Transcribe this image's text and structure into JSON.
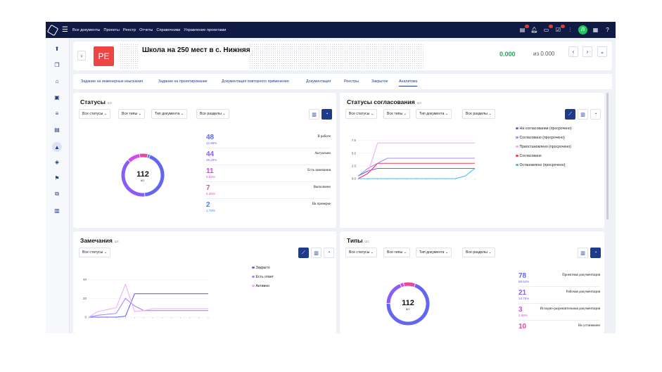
{
  "topbar": {
    "menu": [
      "Все документы",
      "Проекты",
      "Реестр",
      "Отчеты",
      "Справочники",
      "Управление проектами"
    ],
    "avatar_letter": "Л"
  },
  "header": {
    "back": "‹",
    "badge": "РЕ",
    "title": "Школа на 250 мест в с. Нижняя",
    "sum": "0.000",
    "sum_of": "из 0.000"
  },
  "tabs": [
    "Задание на инженерные изыскания",
    "Задание на проектирование",
    "Документация повторного применения",
    "Документация",
    "Реестры",
    "Закрытое",
    "Аналитика"
  ],
  "active_tab": "Аналитика",
  "filters": {
    "statuses": "Все статусы",
    "types": "Все типы",
    "doc_type": "Тип документа",
    "sections": "Все разделы"
  },
  "statuses_panel": {
    "title": "Статусы",
    "unit": "шт.",
    "total": "112",
    "total_unit": "шт.",
    "items": [
      {
        "num": "48",
        "pct": "42.86%",
        "label": "В работе",
        "color": "#6366f1"
      },
      {
        "num": "44",
        "pct": "39.29%",
        "label": "Актуально",
        "color": "#8b5cf6"
      },
      {
        "num": "11",
        "pct": "9.82%",
        "label": "Есть замечания",
        "color": "#d946ef"
      },
      {
        "num": "7",
        "pct": "6.25%",
        "label": "Выполнено",
        "color": "#ec4899"
      },
      {
        "num": "2",
        "pct": "1.79%",
        "label": "На проверке",
        "color": "#3b82f6"
      }
    ]
  },
  "approval_panel": {
    "title": "Статусы согласования",
    "unit": "шт.",
    "legend": [
      {
        "label": "На согласовании (просрочено)",
        "color": "#6366f1"
      },
      {
        "label": "Согласовано (просрочено)",
        "color": "#a78bfa"
      },
      {
        "label": "Приостановлено (просрочено)",
        "color": "#f0abfc"
      },
      {
        "label": "Согласовано",
        "color": "#f43f5e"
      },
      {
        "label": "Остановлено (просрочено)",
        "color": "#38bdf8"
      }
    ]
  },
  "remarks_panel": {
    "title": "Замечания",
    "unit": "шт.",
    "legend": [
      {
        "label": "Закрыто",
        "color": "#6366f1"
      },
      {
        "label": "Есть ответ",
        "color": "#a78bfa"
      },
      {
        "label": "Активно",
        "color": "#f0abfc"
      }
    ]
  },
  "types_panel": {
    "title": "Типы",
    "unit": "шт.",
    "total": "112",
    "total_unit": "шт.",
    "items": [
      {
        "num": "78",
        "pct": "69.64%",
        "label": "Проектная документация",
        "color": "#6366f1"
      },
      {
        "num": "21",
        "pct": "18.75%",
        "label": "Рабочая документация",
        "color": "#8b5cf6"
      },
      {
        "num": "3",
        "pct": "2.68%",
        "label": "Исходно-разрешительная документация",
        "color": "#d946ef"
      },
      {
        "num": "10",
        "pct": "",
        "label": "Не установлен",
        "color": "#ec4899"
      }
    ]
  },
  "chart_data": [
    {
      "type": "line",
      "title": "Статусы согласования",
      "yticks": [
        "0.0",
        "2.5",
        "5.0",
        "7.5"
      ],
      "ylim": [
        0,
        8
      ],
      "x": [
        0,
        1,
        2,
        3,
        4,
        5,
        6,
        7,
        8,
        9,
        10,
        11,
        12
      ],
      "series": [
        {
          "name": "На согласовании (просрочено)",
          "color": "#6366f1",
          "values": [
            0.5,
            1.5,
            2,
            2,
            2,
            2,
            2,
            2,
            2,
            2,
            2,
            2,
            2
          ]
        },
        {
          "name": "Согласовано (просрочено)",
          "color": "#a78bfa",
          "values": [
            0.5,
            2,
            3,
            4,
            4,
            4,
            4,
            4,
            4,
            4,
            4,
            4,
            4
          ]
        },
        {
          "name": "Приостановлено (просрочено)",
          "color": "#f0abfc",
          "values": [
            0,
            1,
            7,
            7,
            7,
            7,
            7,
            7,
            7,
            7,
            7,
            7,
            7
          ]
        },
        {
          "name": "Согласовано",
          "color": "#f43f5e",
          "values": [
            0,
            1,
            3,
            3,
            3,
            3,
            3,
            3,
            3,
            3,
            3,
            3,
            3
          ]
        },
        {
          "name": "Остановлено (просрочено)",
          "color": "#38bdf8",
          "values": [
            0,
            0,
            0,
            0,
            0,
            0,
            0,
            0,
            0,
            0,
            0,
            0.5,
            2
          ]
        }
      ]
    },
    {
      "type": "line",
      "title": "Замечания",
      "yticks": [
        "0",
        "20",
        "40"
      ],
      "ylim": [
        0,
        45
      ],
      "x": [
        0,
        1,
        2,
        3,
        4,
        5,
        6,
        7,
        8,
        9,
        10,
        11,
        12,
        13
      ],
      "series": [
        {
          "name": "Закрыто",
          "color": "#6366f1",
          "values": [
            0,
            0,
            0,
            0,
            1,
            25,
            25,
            25,
            25,
            25,
            25,
            25,
            25,
            25
          ]
        },
        {
          "name": "Есть ответ",
          "color": "#a78bfa",
          "values": [
            0,
            2,
            3,
            4,
            20,
            12,
            7,
            7,
            7,
            7,
            7,
            7,
            7,
            7
          ]
        },
        {
          "name": "Активно",
          "color": "#f0abfc",
          "values": [
            0,
            6,
            8,
            10,
            35,
            6,
            7,
            9,
            9,
            9,
            9,
            9,
            9,
            9
          ]
        }
      ]
    },
    {
      "type": "pie",
      "title": "Статусы",
      "categories": [
        "В работе",
        "Актуально",
        "Есть замечания",
        "Выполнено",
        "На проверке"
      ],
      "values": [
        48,
        44,
        11,
        7,
        2
      ]
    },
    {
      "type": "pie",
      "title": "Типы",
      "categories": [
        "Проектная документация",
        "Рабочая документация",
        "Исходно-разрешительная документация",
        "Не установлен"
      ],
      "values": [
        78,
        21,
        3,
        10
      ]
    }
  ]
}
